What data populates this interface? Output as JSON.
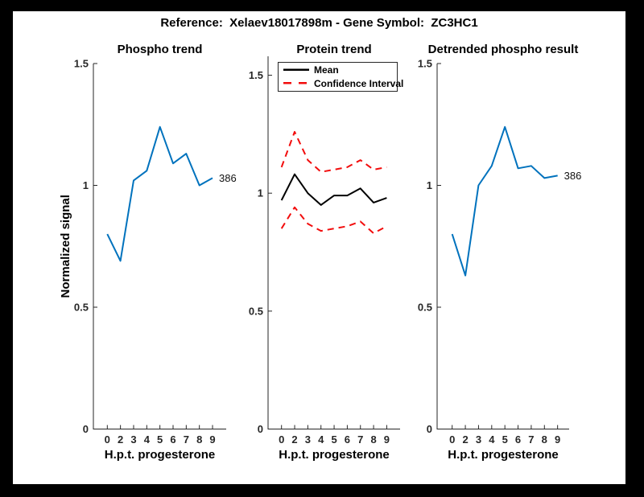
{
  "figure": {
    "title": "Reference:  Xelaev18017898m - Gene Symbol:  ZC3HC1",
    "background_color": "#ffffff",
    "frame_color": "#000000",
    "axis_color": "#262626"
  },
  "chart_data": [
    {
      "type": "line",
      "title": "Phospho trend",
      "xlabel": "H.p.t. progesterone",
      "ylabel": "Normalized signal",
      "x_ticklabels": [
        "0",
        "2",
        "3",
        "4",
        "5",
        "6",
        "7",
        "8",
        "9"
      ],
      "y_ticklabels": [
        "0",
        "0.5",
        "1",
        "1.5"
      ],
      "y_tickvalues": [
        0,
        0.5,
        1,
        1.5
      ],
      "ylim": [
        0,
        1.5
      ],
      "grid": false,
      "end_label": "386",
      "series": [
        {
          "name": "386",
          "color": "#0072BD",
          "style": "solid",
          "values": [
            0.8,
            0.69,
            1.02,
            1.06,
            1.24,
            1.09,
            1.13,
            1.0,
            1.03
          ]
        }
      ]
    },
    {
      "type": "line",
      "title": "Protein trend",
      "xlabel": "H.p.t. progesterone",
      "ylabel": "",
      "x_ticklabels": [
        "0",
        "2",
        "3",
        "4",
        "5",
        "6",
        "7",
        "8",
        "9"
      ],
      "y_ticklabels": [
        "0",
        "0.5",
        "1",
        "1.5"
      ],
      "y_tickvalues": [
        0,
        0.5,
        1,
        1.5
      ],
      "ylim": [
        0,
        1.58
      ],
      "grid": false,
      "legend": {
        "position": "top-left",
        "entries": [
          {
            "label": "Mean",
            "color": "#000000",
            "style": "solid"
          },
          {
            "label": "Confidence Interval",
            "color": "#f20d0d",
            "style": "dashed"
          }
        ]
      },
      "series": [
        {
          "name": "Mean",
          "color": "#000000",
          "style": "solid",
          "values": [
            0.97,
            1.08,
            1.0,
            0.95,
            0.99,
            0.99,
            1.02,
            0.96,
            0.98
          ]
        },
        {
          "name": "Confidence Interval upper",
          "color": "#f20d0d",
          "style": "dashed",
          "values": [
            1.11,
            1.26,
            1.14,
            1.09,
            1.1,
            1.11,
            1.14,
            1.1,
            1.11
          ]
        },
        {
          "name": "Confidence Interval lower",
          "color": "#f20d0d",
          "style": "dashed",
          "values": [
            0.85,
            0.94,
            0.87,
            0.84,
            0.85,
            0.86,
            0.88,
            0.83,
            0.86
          ]
        }
      ]
    },
    {
      "type": "line",
      "title": "Detrended phospho result",
      "xlabel": "H.p.t. progesterone",
      "ylabel": "",
      "x_ticklabels": [
        "0",
        "2",
        "3",
        "4",
        "5",
        "6",
        "7",
        "8",
        "9"
      ],
      "y_ticklabels": [
        "0",
        "0.5",
        "1",
        "1.5"
      ],
      "y_tickvalues": [
        0,
        0.5,
        1,
        1.5
      ],
      "ylim": [
        0,
        1.5
      ],
      "grid": false,
      "end_label": "386",
      "series": [
        {
          "name": "386",
          "color": "#0072BD",
          "style": "solid",
          "values": [
            0.8,
            0.63,
            1.0,
            1.08,
            1.24,
            1.07,
            1.08,
            1.03,
            1.04
          ]
        }
      ]
    }
  ]
}
